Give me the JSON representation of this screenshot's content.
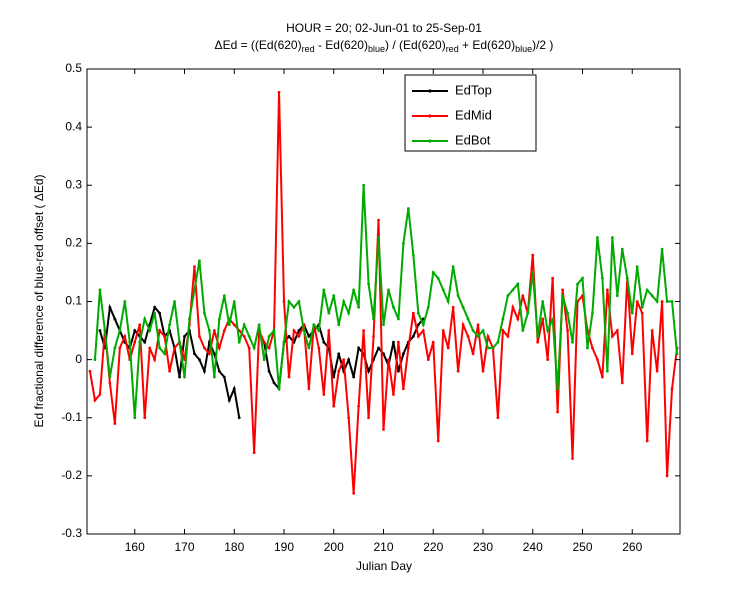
{
  "chart_data": {
    "type": "line",
    "title": "HOUR = 20; 02-Jun-01 to 25-Sep-01",
    "subtitle_parts": [
      "ΔEd = ((Ed(620)",
      "red",
      " - Ed(620)",
      "blue",
      ") / (Ed(620)",
      "red",
      " + Ed(620)",
      "blue",
      ")/2  )"
    ],
    "x_label": "Julian Day",
    "y_label": "Ed fractional difference of blue-red offset ( ΔEd)",
    "xlim": [
      150.4,
      269.6
    ],
    "ylim": [
      -0.3,
      0.5
    ],
    "xticks": [
      160,
      170,
      180,
      190,
      200,
      210,
      220,
      230,
      240,
      250,
      260
    ],
    "yticks": [
      -0.3,
      -0.2,
      -0.1,
      0,
      0.1,
      0.2,
      0.3,
      0.4,
      0.5
    ],
    "legend": "top-right",
    "series": [
      {
        "name": "EdTop",
        "color": "#000000",
        "x": [
          153,
          154,
          155,
          156,
          157,
          158,
          159,
          160,
          161,
          162,
          163,
          164,
          165,
          166,
          167,
          168,
          169,
          170,
          171,
          172,
          173,
          174,
          175,
          176,
          177,
          178,
          179,
          180,
          181,
          182,
          183,
          184,
          185,
          186,
          187,
          188,
          189,
          190,
          191,
          192,
          193,
          194,
          195,
          196,
          197,
          198,
          199,
          200,
          201,
          202,
          203,
          204,
          205,
          206,
          207,
          208,
          209,
          210,
          211,
          212,
          213,
          214,
          215,
          216,
          217,
          218
        ],
        "values": [
          0.05,
          0.02,
          0.09,
          0.07,
          0.05,
          0.03,
          0.02,
          0.05,
          0.04,
          0.03,
          0.06,
          0.09,
          0.08,
          0.04,
          0.05,
          0.02,
          -0.03,
          0.04,
          0.05,
          0.01,
          0.0,
          -0.02,
          0.03,
          0.01,
          -0.02,
          -0.03,
          -0.07,
          -0.05,
          -0.1,
          null,
          null,
          null,
          null,
          0.03,
          -0.02,
          -0.04,
          -0.05,
          0.03,
          0.04,
          0.03,
          0.05,
          0.06,
          0.04,
          0.05,
          0.06,
          0.03,
          0.02,
          -0.03,
          0.01,
          -0.02,
          0.0,
          -0.03,
          0.02,
          0.01,
          -0.02,
          0.0,
          0.02,
          0.01,
          -0.01,
          0.03,
          -0.02,
          0.01,
          0.03,
          0.04,
          0.06,
          0.07
        ]
      },
      {
        "name": "EdMid",
        "color": "#ff0000",
        "x": [
          151,
          152,
          153,
          154,
          155,
          156,
          157,
          158,
          159,
          160,
          161,
          162,
          163,
          164,
          165,
          166,
          167,
          168,
          169,
          170,
          171,
          172,
          173,
          174,
          175,
          176,
          177,
          178,
          179,
          180,
          181,
          182,
          183,
          184,
          185,
          186,
          187,
          188,
          189,
          190,
          191,
          192,
          193,
          194,
          195,
          196,
          197,
          198,
          199,
          200,
          201,
          202,
          203,
          204,
          205,
          206,
          207,
          208,
          209,
          210,
          211,
          212,
          213,
          214,
          215,
          216,
          217,
          218,
          219,
          220,
          221,
          222,
          223,
          224,
          225,
          226,
          227,
          228,
          229,
          230,
          231,
          232,
          233,
          234,
          235,
          236,
          237,
          238,
          239,
          240,
          241,
          242,
          243,
          244,
          245,
          246,
          247,
          248,
          249,
          250,
          251,
          252,
          253,
          254,
          255,
          256,
          257,
          258,
          259,
          260,
          261,
          262,
          263,
          264,
          265,
          266,
          267,
          268,
          269
        ],
        "values": [
          -0.02,
          -0.07,
          -0.06,
          0.05,
          -0.04,
          -0.11,
          0.02,
          0.04,
          0.0,
          0.03,
          0.06,
          -0.1,
          0.02,
          0.0,
          0.05,
          0.04,
          -0.02,
          0.02,
          0.03,
          0.0,
          0.06,
          0.16,
          0.04,
          0.02,
          0.01,
          0.05,
          0.02,
          0.05,
          0.07,
          0.06,
          0.05,
          0.04,
          0.02,
          -0.16,
          0.05,
          0.03,
          0.02,
          0.05,
          0.46,
          0.1,
          -0.03,
          0.05,
          0.04,
          0.06,
          -0.05,
          0.06,
          0.02,
          -0.06,
          0.05,
          -0.08,
          -0.02,
          0.0,
          -0.1,
          -0.23,
          -0.08,
          0.05,
          -0.1,
          0.04,
          0.24,
          -0.12,
          0.0,
          -0.06,
          0.03,
          -0.05,
          0.02,
          0.08,
          0.04,
          0.05,
          0.0,
          0.03,
          -0.14,
          0.05,
          0.02,
          0.09,
          -0.02,
          0.06,
          0.04,
          0.01,
          0.06,
          -0.02,
          0.04,
          0.02,
          -0.1,
          0.05,
          0.04,
          0.09,
          0.07,
          0.11,
          0.08,
          0.18,
          0.03,
          0.07,
          0.0,
          0.14,
          -0.09,
          0.12,
          0.05,
          -0.17,
          0.1,
          0.11,
          0.05,
          0.02,
          0.0,
          -0.03,
          0.12,
          0.04,
          0.05,
          -0.04,
          0.14,
          0.01,
          0.1,
          0.08,
          -0.14,
          0.05,
          -0.02,
          0.1,
          -0.2,
          -0.05,
          0.02
        ]
      },
      {
        "name": "EdBot",
        "color": "#00aa00",
        "x": [
          152,
          153,
          154,
          155,
          156,
          157,
          158,
          159,
          160,
          161,
          162,
          163,
          164,
          165,
          166,
          167,
          168,
          169,
          170,
          171,
          172,
          173,
          174,
          175,
          176,
          177,
          178,
          179,
          180,
          181,
          182,
          183,
          184,
          185,
          186,
          187,
          188,
          189,
          190,
          191,
          192,
          193,
          194,
          195,
          196,
          197,
          198,
          199,
          200,
          201,
          202,
          203,
          204,
          205,
          206,
          207,
          208,
          209,
          210,
          211,
          212,
          213,
          214,
          215,
          216,
          217,
          218,
          219,
          220,
          221,
          222,
          223,
          224,
          225,
          226,
          227,
          228,
          229,
          230,
          231,
          232,
          233,
          234,
          235,
          236,
          237,
          238,
          239,
          240,
          241,
          242,
          243,
          244,
          245,
          246,
          247,
          248,
          249,
          250,
          251,
          252,
          253,
          254,
          255,
          256,
          257,
          258,
          259,
          260,
          261,
          262,
          263,
          264,
          265,
          266,
          267,
          268,
          269
        ],
        "values": [
          0.0,
          0.12,
          0.05,
          -0.03,
          0.02,
          0.05,
          0.1,
          0.03,
          -0.1,
          0.03,
          0.07,
          0.05,
          0.08,
          0.02,
          0.01,
          0.06,
          0.1,
          0.03,
          -0.03,
          0.07,
          0.12,
          0.17,
          0.08,
          0.05,
          -0.03,
          0.07,
          0.11,
          0.06,
          0.1,
          0.03,
          0.06,
          0.04,
          0.02,
          0.06,
          0.0,
          0.04,
          0.05,
          -0.05,
          0.03,
          0.1,
          0.09,
          0.1,
          0.05,
          0.02,
          0.06,
          0.05,
          0.12,
          0.08,
          0.11,
          0.06,
          0.1,
          0.08,
          0.12,
          0.09,
          0.3,
          0.13,
          0.07,
          0.21,
          0.06,
          0.12,
          0.09,
          0.07,
          0.2,
          0.26,
          0.18,
          0.08,
          0.06,
          0.09,
          0.15,
          0.14,
          0.12,
          0.1,
          0.16,
          0.11,
          0.09,
          0.07,
          0.05,
          0.04,
          0.05,
          0.02,
          0.02,
          0.03,
          0.07,
          0.11,
          0.12,
          0.13,
          0.05,
          0.08,
          0.15,
          0.04,
          0.1,
          0.05,
          0.07,
          -0.05,
          0.11,
          0.08,
          0.03,
          0.13,
          0.14,
          0.02,
          0.08,
          0.21,
          0.14,
          -0.02,
          0.21,
          0.11,
          0.19,
          0.14,
          0.08,
          0.16,
          0.09,
          0.12,
          0.11,
          0.1,
          0.19,
          0.1,
          0.1,
          0.01
        ]
      }
    ]
  }
}
